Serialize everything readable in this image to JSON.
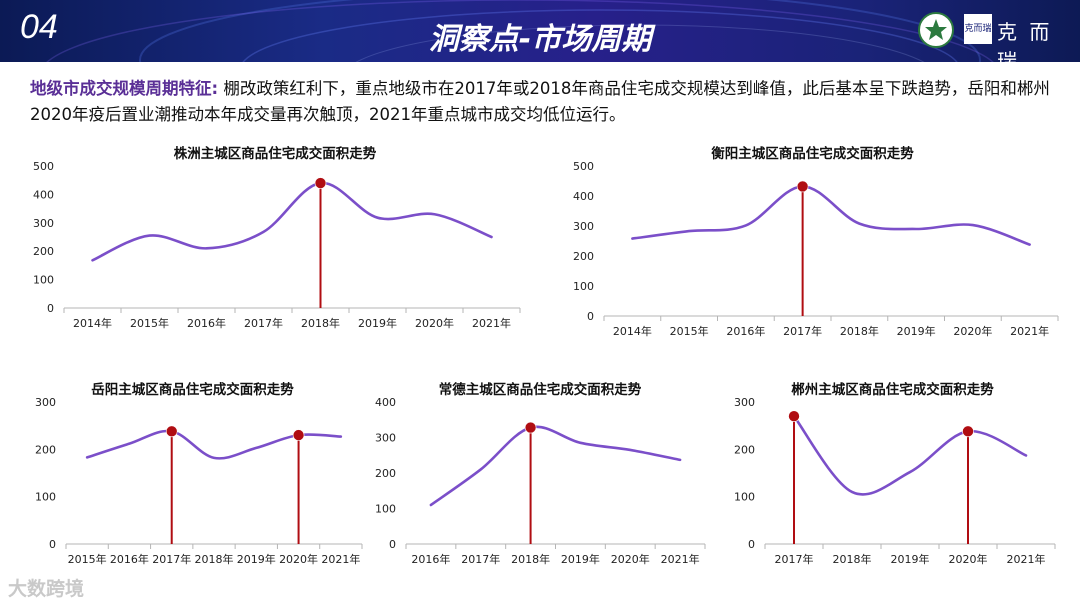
{
  "header": {
    "page_number": "04",
    "title": "洞察点-市场周期",
    "logo_box_text": "克而瑞",
    "logo_text": "克 而 瑞"
  },
  "summary": {
    "label": "地级市成交规模周期特征:",
    "text": " 棚改政策红利下，重点地级市在2017年或2018年商品住宅成交规模达到峰值，此后基本呈下跌趋势，岳阳和郴州2020年疫后置业潮推动本年成交量再次触顶，2021年重点城市成交均低位运行。"
  },
  "watermark": "大数跨境",
  "colors": {
    "line": "#7b4fc9",
    "peak": "#b00d12",
    "header": "#1a2378",
    "label": "#5a2f96"
  },
  "chart_data": [
    {
      "id": "zhuzhou",
      "type": "line",
      "title": "株洲主城区商品住宅成交面积走势",
      "categories": [
        "2014年",
        "2015年",
        "2016年",
        "2017年",
        "2018年",
        "2019年",
        "2020年",
        "2021年"
      ],
      "values": [
        168,
        255,
        210,
        268,
        440,
        318,
        330,
        250
      ],
      "ylim": [
        0,
        500
      ],
      "yticks": [
        0,
        100,
        200,
        300,
        400,
        500
      ],
      "peaks": [
        4
      ]
    },
    {
      "id": "hengyang",
      "type": "line",
      "title": "衡阳主城区商品住宅成交面积走势",
      "categories": [
        "2014年",
        "2015年",
        "2016年",
        "2017年",
        "2018年",
        "2019年",
        "2020年",
        "2021年"
      ],
      "values": [
        258,
        283,
        302,
        432,
        308,
        290,
        303,
        238
      ],
      "ylim": [
        0,
        500
      ],
      "yticks": [
        0,
        100,
        200,
        300,
        400,
        500
      ],
      "peaks": [
        3
      ]
    },
    {
      "id": "yueyang",
      "type": "line",
      "title": "岳阳主城区商品住宅成交面积走势",
      "categories": [
        "2015年",
        "2016年",
        "2017年",
        "2018年",
        "2019年",
        "2020年",
        "2021年"
      ],
      "values": [
        183,
        212,
        238,
        182,
        203,
        230,
        227
      ],
      "ylim": [
        0,
        300
      ],
      "yticks": [
        0,
        100,
        200,
        300
      ],
      "peaks": [
        2,
        5
      ]
    },
    {
      "id": "changde",
      "type": "line",
      "title": "常德主城区商品住宅成交面积走势",
      "categories": [
        "2016年",
        "2017年",
        "2018年",
        "2019年",
        "2020年",
        "2021年"
      ],
      "values": [
        110,
        210,
        328,
        285,
        265,
        237
      ],
      "ylim": [
        0,
        400
      ],
      "yticks": [
        0,
        100,
        200,
        300,
        400
      ],
      "peaks": [
        2
      ]
    },
    {
      "id": "chenzhou",
      "type": "line",
      "title": "郴州主城区商品住宅成交面积走势",
      "categories": [
        "2017年",
        "2018年",
        "2019年",
        "2020年",
        "2021年"
      ],
      "values": [
        270,
        110,
        152,
        238,
        187
      ],
      "ylim": [
        0,
        300
      ],
      "yticks": [
        0,
        100,
        200,
        300
      ],
      "peaks": [
        0,
        3
      ]
    }
  ]
}
